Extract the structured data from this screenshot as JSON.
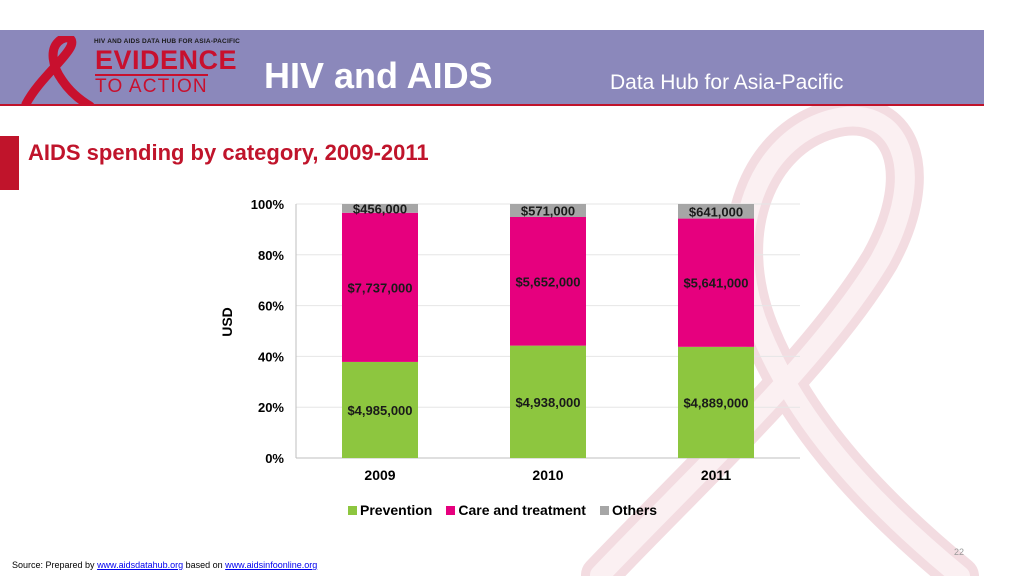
{
  "header": {
    "logo_top": "HIV AND AIDS DATA HUB FOR ASIA-PACIFIC",
    "logo_line1": "EVIDENCE",
    "logo_line2": "TO ACTION",
    "title": "HIV and AIDS",
    "subtitle": "Data Hub for Asia-Pacific"
  },
  "slide": {
    "title": "AIDS spending by category, 2009-2011",
    "page_number": "22"
  },
  "source": {
    "prefix": "Source: Prepared by ",
    "link1": "www.aidsdatahub.org",
    "middle": " based on ",
    "link2": "www.aidsinfoonline.org"
  },
  "colors": {
    "header_bg": "#8b88bb",
    "accent_red": "#c0142b",
    "prevention": "#8dc63f",
    "care": "#e6007e",
    "others": "#a6a6a6"
  },
  "chart_data": {
    "type": "bar",
    "stacked": "percent",
    "categories": [
      "2009",
      "2010",
      "2011"
    ],
    "ylabel": "USD",
    "ylim": [
      0,
      100
    ],
    "yticks": [
      "0%",
      "20%",
      "40%",
      "60%",
      "80%",
      "100%"
    ],
    "legend_position": "bottom",
    "series": [
      {
        "name": "Prevention",
        "values": [
          4985000,
          4938000,
          4889000
        ],
        "labels": [
          "$4,985,000",
          "$4,938,000",
          "$4,889,000"
        ]
      },
      {
        "name": "Care and treatment",
        "values": [
          7737000,
          5652000,
          5641000
        ],
        "labels": [
          "$7,737,000",
          "$5,652,000",
          "$5,641,000"
        ]
      },
      {
        "name": "Others",
        "values": [
          456000,
          571000,
          641000
        ],
        "labels": [
          "$456,000",
          "$571,000",
          "$641,000"
        ]
      }
    ]
  }
}
